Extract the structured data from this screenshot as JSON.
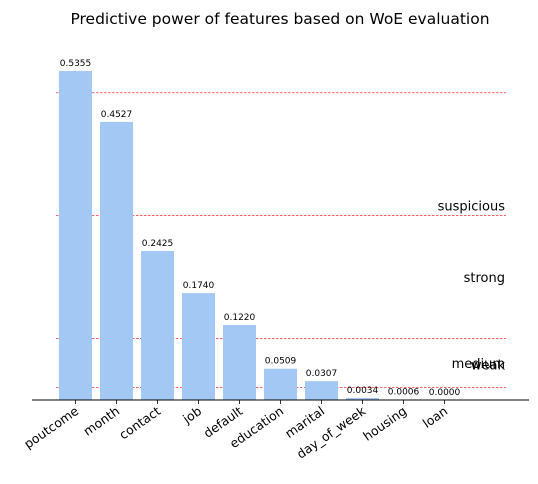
{
  "chart_data": {
    "type": "bar",
    "title": "Predictive power of features based on WoE evaluation",
    "xlabel": "",
    "ylabel": "",
    "categories": [
      "poutcome",
      "month",
      "contact",
      "job",
      "default",
      "education",
      "marital",
      "day_of_week",
      "housing",
      "loan"
    ],
    "values": [
      0.5355,
      0.4527,
      0.2425,
      0.174,
      0.122,
      0.0509,
      0.0307,
      0.0034,
      0.0006,
      0.0
    ],
    "value_labels": [
      "0.5355",
      "0.4527",
      "0.2425",
      "0.1740",
      "0.1220",
      "0.0509",
      "0.0307",
      "0.0034",
      "0.0006",
      "0.0000"
    ],
    "thresholds": [
      0.02,
      0.1,
      0.3,
      0.5
    ],
    "bands": [
      "weak",
      "medium",
      "strong",
      "suspicious"
    ],
    "ylim": [
      0,
      0.55
    ],
    "bar_color": "#a3c8f4",
    "threshold_color": "#ff0000",
    "grid": false,
    "legend": "none"
  }
}
